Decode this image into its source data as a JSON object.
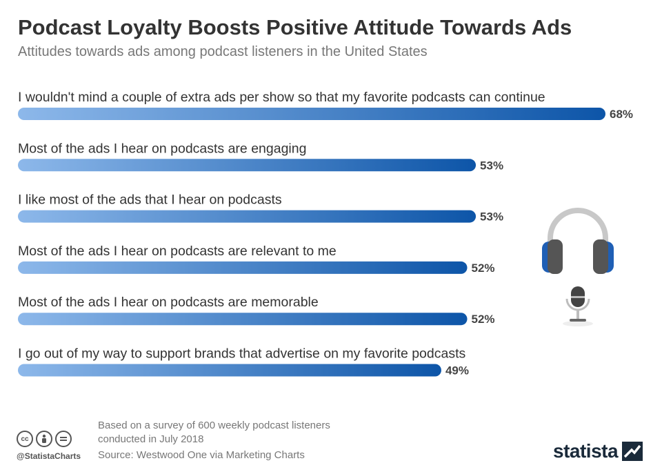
{
  "header": {
    "title": "Podcast Loyalty Boosts Positive Attitude Towards Ads",
    "subtitle": "Attitudes towards ads among podcast listeners in the United States"
  },
  "chart_data": {
    "type": "bar",
    "orientation": "horizontal",
    "categories": [
      "I wouldn't mind a couple of extra ads per show so that my favorite podcasts can continue",
      "Most of the ads I hear on podcasts are engaging",
      "I like most of the ads that I hear on podcasts",
      "Most of the ads I hear on podcasts are relevant to me",
      "Most of the ads I hear on podcasts are memorable",
      "I go out of my way to support brands that advertise on my favorite podcasts"
    ],
    "values": [
      68,
      53,
      53,
      52,
      52,
      49
    ],
    "value_labels": [
      "68%",
      "53%",
      "53%",
      "52%",
      "52%",
      "49%"
    ],
    "unit": "%",
    "xlim": [
      0,
      68
    ],
    "grid": false,
    "legend": "none",
    "colors": {
      "bar_start": "#8db8ea",
      "bar_end": "#0d55a8"
    }
  },
  "footer": {
    "note_line1": "Based on a survey of 600 weekly podcast listeners",
    "note_line2": "conducted in July 2018",
    "source": "Source: Westwood One via Marketing Charts",
    "handle": "@StatistaCharts",
    "logo_text": "statista"
  },
  "icons": {
    "cc": "cc-icon",
    "by": "attribution-icon",
    "nd": "no-derivatives-icon",
    "headphones": "headphones-icon",
    "microphone": "microphone-icon"
  }
}
